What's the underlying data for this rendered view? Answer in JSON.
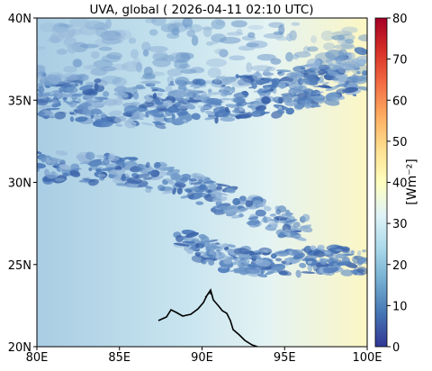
{
  "chart_data": {
    "type": "heatmap",
    "title": "UVA, global ( 2026-04-11 02:10 UTC)",
    "x_ticks": [
      "80E",
      "85E",
      "90E",
      "95E",
      "100E"
    ],
    "x_tick_values": [
      80,
      85,
      90,
      95,
      100
    ],
    "y_ticks": [
      "20N",
      "25N",
      "30N",
      "35N",
      "40N"
    ],
    "y_tick_values": [
      20,
      25,
      30,
      35,
      40
    ],
    "xlim": [
      80,
      100
    ],
    "ylim": [
      20,
      40
    ],
    "colorbar": {
      "label": "[Wm⁻²]",
      "ticks": [
        "0",
        "10",
        "20",
        "30",
        "40",
        "50",
        "60",
        "70",
        "80"
      ],
      "tick_values": [
        0,
        10,
        20,
        30,
        40,
        50,
        60,
        70,
        80
      ],
      "range": [
        0,
        80
      ],
      "colormap": "RdYlBu_r",
      "colors": [
        "#313695",
        "#4575b4",
        "#74add1",
        "#abd9e9",
        "#e0f3f8",
        "#ffffbf",
        "#fee090",
        "#fdae61",
        "#f46d43",
        "#d73027",
        "#a50026"
      ]
    },
    "field_description": {
      "background_west_value": 30,
      "background_east_value": 40,
      "cloud_band_values": [
        5,
        15
      ],
      "cloud_bands": [
        {
          "name": "northern band",
          "lat_range": [
            32,
            37
          ],
          "lon_range": [
            80,
            100
          ]
        },
        {
          "name": "central band",
          "lat_range": [
            27,
            31
          ],
          "lon_range": [
            80,
            95
          ]
        },
        {
          "name": "southern band",
          "lat_range": [
            21,
            25
          ],
          "lon_range": [
            89,
            100
          ]
        }
      ]
    },
    "grid": false
  }
}
